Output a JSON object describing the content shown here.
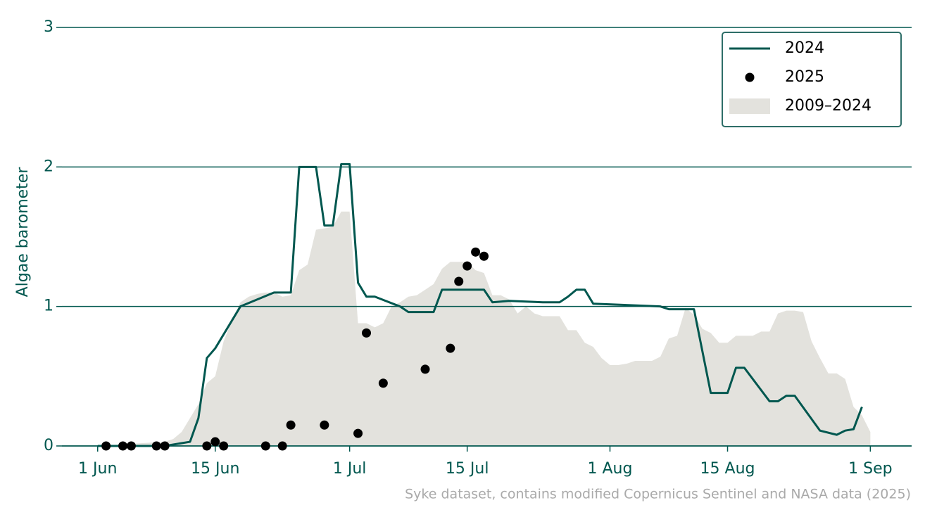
{
  "chart_data": {
    "type": "line",
    "ylabel": "Algae barometer",
    "source": "Syke dataset, contains modified Copernicus Sentinel and NASA data (2025)",
    "xlim": [
      "28 May",
      "6 Sep"
    ],
    "xticks": [
      "1 Jun",
      "15 Jun",
      "1 Jul",
      "15 Jul",
      "1 Aug",
      "15 Aug",
      "1 Sep"
    ],
    "ylim": [
      0,
      3
    ],
    "yticks": [
      0,
      1,
      2,
      3
    ],
    "grid": true,
    "legend": "upper right",
    "series": [
      {
        "name": "2024",
        "type": "line",
        "color": "#00574f",
        "x": [
          "1 Jun",
          "9 Jun",
          "12 Jun",
          "13 Jun",
          "14 Jun",
          "15 Jun",
          "18 Jun",
          "22 Jun",
          "24 Jun",
          "25 Jun",
          "27 Jun",
          "28 Jun",
          "29 Jun",
          "30 Jun",
          "1 Jul",
          "2 Jul",
          "3 Jul",
          "4 Jul",
          "7 Jul",
          "8 Jul",
          "11 Jul",
          "12 Jul",
          "17 Jul",
          "18 Jul",
          "20 Jul",
          "24 Jul",
          "26 Jul",
          "27 Jul",
          "28 Jul",
          "29 Jul",
          "30 Jul",
          "7 Aug",
          "8 Aug",
          "11 Aug",
          "13 Aug",
          "15 Aug",
          "16 Aug",
          "17 Aug",
          "20 Aug",
          "21 Aug",
          "22 Aug",
          "23 Aug",
          "26 Aug",
          "28 Aug",
          "29 Aug",
          "30 Aug",
          "31 Aug"
        ],
        "values": [
          0,
          0,
          0.03,
          0.2,
          0.63,
          0.7,
          1.0,
          1.1,
          1.1,
          2.0,
          2.0,
          1.58,
          1.58,
          2.02,
          2.02,
          1.17,
          1.07,
          1.07,
          1.0,
          0.96,
          0.96,
          1.12,
          1.12,
          1.03,
          1.04,
          1.03,
          1.03,
          1.07,
          1.12,
          1.12,
          1.02,
          1.0,
          0.98,
          0.98,
          0.38,
          0.38,
          0.56,
          0.56,
          0.32,
          0.32,
          0.36,
          0.36,
          0.11,
          0.08,
          0.11,
          0.12,
          0.28
        ]
      },
      {
        "name": "2025",
        "type": "scatter",
        "color": "#000000",
        "x": [
          "2 Jun",
          "4 Jun",
          "5 Jun",
          "8 Jun",
          "9 Jun",
          "14 Jun",
          "15 Jun",
          "16 Jun",
          "21 Jun",
          "23 Jun",
          "24 Jun",
          "28 Jun",
          "2 Jul",
          "3 Jul",
          "5 Jul",
          "10 Jul",
          "13 Jul",
          "14 Jul",
          "15 Jul",
          "16 Jul",
          "17 Jul"
        ],
        "values": [
          0,
          0,
          0,
          0,
          0,
          0,
          0.03,
          0,
          0,
          0,
          0.15,
          0.15,
          0.09,
          0.81,
          0.45,
          0.55,
          0.7,
          1.18,
          1.29,
          1.39,
          1.36
        ]
      },
      {
        "name": "2009–2024",
        "type": "area",
        "color": "#e3e2dd",
        "x": [
          "1 Jun",
          "9 Jun",
          "10 Jun",
          "11 Jun",
          "12 Jun",
          "13 Jun",
          "14 Jun",
          "15 Jun",
          "16 Jun",
          "17 Jun",
          "18 Jun",
          "19 Jun",
          "20 Jun",
          "21 Jun",
          "22 Jun",
          "23 Jun",
          "24 Jun",
          "25 Jun",
          "26 Jun",
          "27 Jun",
          "28 Jun",
          "29 Jun",
          "30 Jun",
          "1 Jul",
          "2 Jul",
          "3 Jul",
          "4 Jul",
          "5 Jul",
          "6 Jul",
          "7 Jul",
          "8 Jul",
          "9 Jul",
          "10 Jul",
          "11 Jul",
          "12 Jul",
          "13 Jul",
          "14 Jul",
          "15 Jul",
          "16 Jul",
          "17 Jul",
          "18 Jul",
          "19 Jul",
          "20 Jul",
          "21 Jul",
          "22 Jul",
          "23 Jul",
          "24 Jul",
          "25 Jul",
          "26 Jul",
          "27 Jul",
          "28 Jul",
          "29 Jul",
          "30 Jul",
          "31 Jul",
          "1 Aug",
          "2 Aug",
          "3 Aug",
          "4 Aug",
          "5 Aug",
          "6 Aug",
          "7 Aug",
          "8 Aug",
          "9 Aug",
          "10 Aug",
          "11 Aug",
          "12 Aug",
          "13 Aug",
          "14 Aug",
          "15 Aug",
          "16 Aug",
          "17 Aug",
          "18 Aug",
          "19 Aug",
          "20 Aug",
          "21 Aug",
          "22 Aug",
          "23 Aug",
          "24 Aug",
          "25 Aug",
          "26 Aug",
          "27 Aug",
          "28 Aug",
          "29 Aug",
          "30 Aug",
          "31 Aug",
          "1 Sep"
        ],
        "values": [
          0,
          0.03,
          0.05,
          0.1,
          0.2,
          0.3,
          0.45,
          0.5,
          0.75,
          0.9,
          1.03,
          1.07,
          1.09,
          1.1,
          1.1,
          1.07,
          1.08,
          1.26,
          1.3,
          1.55,
          1.56,
          1.57,
          1.68,
          1.68,
          0.88,
          0.88,
          0.85,
          0.88,
          1.0,
          1.03,
          1.07,
          1.08,
          1.12,
          1.16,
          1.27,
          1.32,
          1.32,
          1.32,
          1.26,
          1.24,
          1.08,
          1.08,
          1.05,
          0.95,
          1.0,
          0.95,
          0.93,
          0.93,
          0.93,
          0.83,
          0.83,
          0.74,
          0.71,
          0.63,
          0.58,
          0.58,
          0.59,
          0.61,
          0.61,
          0.61,
          0.64,
          0.77,
          0.79,
          0.99,
          0.94,
          0.84,
          0.81,
          0.74,
          0.74,
          0.79,
          0.79,
          0.79,
          0.82,
          0.82,
          0.95,
          0.97,
          0.97,
          0.96,
          0.75,
          0.63,
          0.52,
          0.52,
          0.48,
          0.28,
          0.22,
          0.1
        ]
      }
    ]
  }
}
